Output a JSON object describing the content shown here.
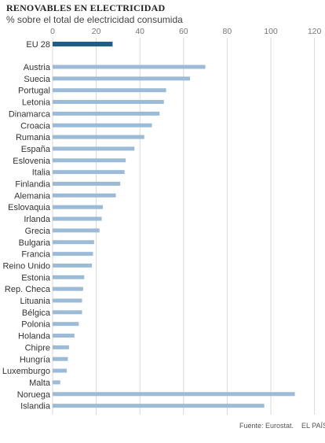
{
  "header": {
    "title": "RENOVABLES EN ELECTRICIDAD",
    "subtitle": "% sobre el total de electricidad consumida"
  },
  "footer": {
    "source": "Fuente: Eurostat.",
    "publisher": "EL PAÍS"
  },
  "colors": {
    "highlight": "#1f5f87",
    "bar": "#9bbbd6",
    "grid": "#d9d9d9",
    "tick_text": "#777777"
  },
  "chart_data": {
    "type": "bar",
    "orientation": "horizontal",
    "xlim": [
      0,
      120
    ],
    "ticks": [
      0,
      20,
      40,
      60,
      80,
      100,
      120
    ],
    "grid": true,
    "highlight": {
      "category": "EU 28",
      "value": 27.5
    },
    "categories": [
      "Austria",
      "Suecia",
      "Portugal",
      "Letonia",
      "Dinamarca",
      "Croacia",
      "Rumania",
      "España",
      "Eslovenia",
      "Italia",
      "Finlandia",
      "Alemania",
      "Eslovaquia",
      "Irlanda",
      "Grecia",
      "Bulgaria",
      "Francia",
      "Reino Unido",
      "Estonia",
      "Rep. Checa",
      "Lituania",
      "Bélgica",
      "Polonia",
      "Holanda",
      "Chipre",
      "Hungría",
      "Luxemburgo",
      "Malta",
      "Noruega",
      "Islandia"
    ],
    "values": [
      70,
      63,
      52,
      51,
      49,
      45.5,
      42,
      37.5,
      33.5,
      33,
      31,
      29,
      23,
      22.5,
      21.5,
      19,
      18.5,
      18,
      14.5,
      14,
      13.5,
      13.5,
      12,
      10,
      7.5,
      7,
      6.5,
      3.5,
      111,
      97
    ]
  }
}
